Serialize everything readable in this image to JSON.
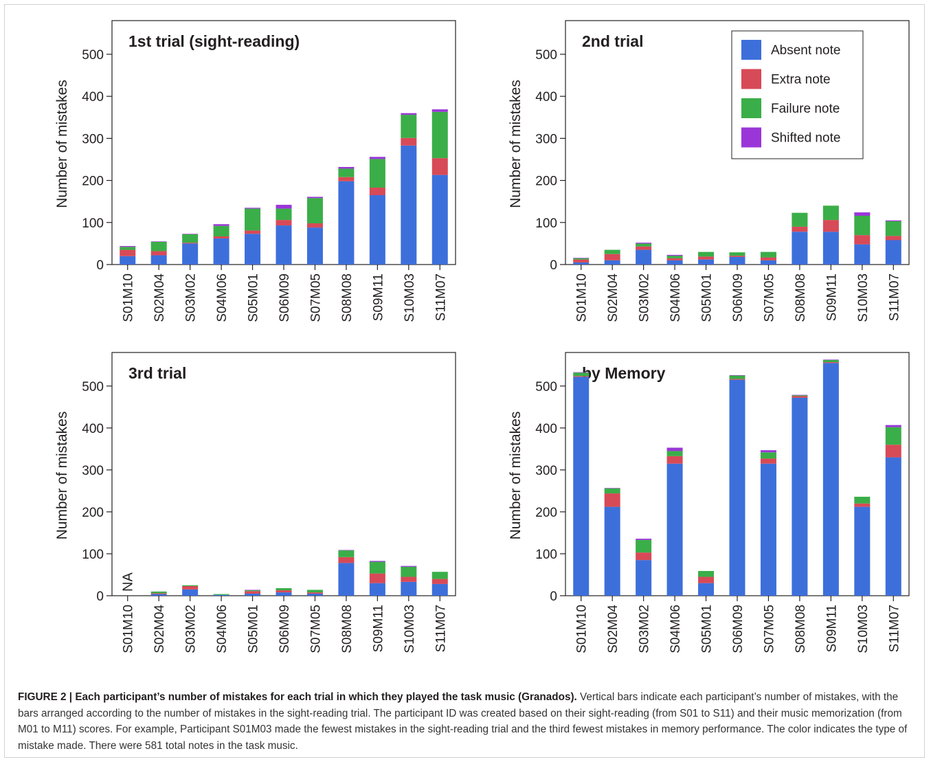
{
  "colors": {
    "absent": "#3d6fdb",
    "extra": "#d74a57",
    "failure": "#3aae48",
    "shifted": "#9a36d8"
  },
  "legend": [
    {
      "key": "absent",
      "label": "Absent note"
    },
    {
      "key": "extra",
      "label": "Extra note"
    },
    {
      "key": "failure",
      "label": "Failure note"
    },
    {
      "key": "shifted",
      "label": "Shifted note"
    }
  ],
  "caption": {
    "bold": "FIGURE 2 | Each participant’s number of mistakes for each trial in which they played the task music (Granados).",
    "text": " Vertical bars indicate each participant’s number of mistakes, with the bars arranged according to the number of mistakes in the sight-reading trial. The participant ID was created based on their sight-reading (from S01 to S11) and their music memorization (from M01 to M11) scores. For example, Participant S01M03 made the fewest mistakes in the sight-reading trial and the third fewest mistakes in memory performance. The color indicates the type of mistake made. There were 581 total notes in the task music."
  },
  "chart_data": [
    {
      "type": "bar",
      "stacked": true,
      "title": "1st trial (sight-reading)",
      "ylabel": "Number of mistakes",
      "ylim": [
        0,
        580
      ],
      "yticks": [
        0,
        100,
        200,
        300,
        400,
        500
      ],
      "categories": [
        "S01M10",
        "S02M04",
        "S03M02",
        "S04M06",
        "S05M01",
        "S06M09",
        "S07M05",
        "S08M08",
        "S09M11",
        "S10M03",
        "S11M07"
      ],
      "series": [
        {
          "name": "Absent note",
          "key": "absent",
          "values": [
            20,
            22,
            50,
            62,
            73,
            93,
            88,
            198,
            165,
            283,
            213
          ]
        },
        {
          "name": "Extra note",
          "key": "extra",
          "values": [
            15,
            10,
            2,
            5,
            8,
            13,
            10,
            10,
            18,
            18,
            40
          ]
        },
        {
          "name": "Failure note",
          "key": "failure",
          "values": [
            7,
            22,
            20,
            25,
            52,
            27,
            60,
            20,
            68,
            55,
            110
          ]
        },
        {
          "name": "Shifted note",
          "key": "shifted",
          "values": [
            2,
            1,
            1,
            4,
            2,
            9,
            3,
            4,
            5,
            4,
            6
          ]
        }
      ],
      "na": []
    },
    {
      "type": "bar",
      "stacked": true,
      "title": "2nd trial",
      "ylabel": "Number of mistakes",
      "ylim": [
        0,
        580
      ],
      "yticks": [
        0,
        100,
        200,
        300,
        400,
        500
      ],
      "legend": "top-right",
      "categories": [
        "S01M10",
        "S02M04",
        "S03M02",
        "S04M06",
        "S05M01",
        "S06M09",
        "S07M05",
        "S08M08",
        "S09M11",
        "S10M03",
        "S11M07"
      ],
      "series": [
        {
          "name": "Absent note",
          "key": "absent",
          "values": [
            5,
            10,
            35,
            10,
            12,
            18,
            10,
            78,
            78,
            48,
            58
          ]
        },
        {
          "name": "Extra note",
          "key": "extra",
          "values": [
            7,
            15,
            8,
            5,
            7,
            3,
            7,
            12,
            28,
            22,
            10
          ]
        },
        {
          "name": "Failure note",
          "key": "failure",
          "values": [
            3,
            10,
            7,
            6,
            11,
            8,
            13,
            33,
            34,
            46,
            35
          ]
        },
        {
          "name": "Shifted note",
          "key": "shifted",
          "values": [
            1,
            0,
            2,
            2,
            0,
            0,
            0,
            0,
            0,
            8,
            2
          ]
        }
      ],
      "na": []
    },
    {
      "type": "bar",
      "stacked": true,
      "title": "3rd trial",
      "ylabel": "Number of mistakes",
      "ylim": [
        0,
        580
      ],
      "yticks": [
        0,
        100,
        200,
        300,
        400,
        500
      ],
      "categories": [
        "S01M10",
        "S02M04",
        "S03M02",
        "S04M06",
        "S05M01",
        "S06M09",
        "S07M05",
        "S08M08",
        "S09M11",
        "S10M03",
        "S11M07"
      ],
      "series": [
        {
          "name": "Absent note",
          "key": "absent",
          "values": [
            0,
            4,
            15,
            2,
            5,
            8,
            5,
            78,
            30,
            33,
            28
          ]
        },
        {
          "name": "Extra note",
          "key": "extra",
          "values": [
            0,
            2,
            8,
            0,
            6,
            5,
            3,
            14,
            23,
            12,
            12
          ]
        },
        {
          "name": "Failure note",
          "key": "failure",
          "values": [
            0,
            4,
            2,
            2,
            2,
            5,
            6,
            16,
            28,
            24,
            17
          ]
        },
        {
          "name": "Shifted note",
          "key": "shifted",
          "values": [
            0,
            0,
            0,
            0,
            1,
            0,
            0,
            1,
            2,
            2,
            0
          ]
        }
      ],
      "na": [
        "S01M10"
      ],
      "na_label": "NA"
    },
    {
      "type": "bar",
      "stacked": true,
      "title": "by Memory",
      "ylabel": "Number of mistakes",
      "ylim": [
        0,
        580
      ],
      "yticks": [
        0,
        100,
        200,
        300,
        400,
        500
      ],
      "categories": [
        "S01M10",
        "S02M04",
        "S03M02",
        "S04M06",
        "S05M01",
        "S06M09",
        "S07M05",
        "S08M08",
        "S09M11",
        "S10M03",
        "S11M07"
      ],
      "series": [
        {
          "name": "Absent note",
          "key": "absent",
          "values": [
            522,
            212,
            85,
            315,
            30,
            515,
            315,
            472,
            555,
            212,
            330
          ]
        },
        {
          "name": "Extra note",
          "key": "extra",
          "values": [
            2,
            32,
            18,
            18,
            15,
            2,
            12,
            4,
            2,
            8,
            30
          ]
        },
        {
          "name": "Failure note",
          "key": "failure",
          "values": [
            8,
            12,
            30,
            12,
            14,
            8,
            15,
            2,
            5,
            16,
            42
          ]
        },
        {
          "name": "Shifted note",
          "key": "shifted",
          "values": [
            1,
            1,
            3,
            8,
            0,
            1,
            5,
            1,
            1,
            0,
            5
          ]
        }
      ],
      "na": []
    }
  ]
}
